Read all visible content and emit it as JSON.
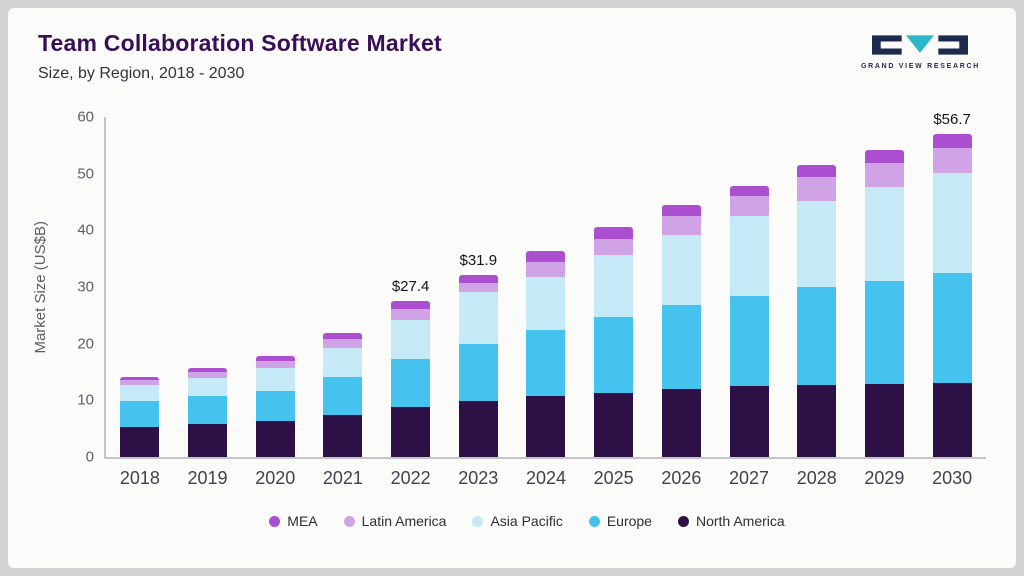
{
  "page": {
    "title": "Team Collaboration Software Market",
    "subtitle": "Size, by Region, 2018 - 2030"
  },
  "logo": {
    "text": "GRAND VIEW RESEARCH",
    "dark_color": "#1d2b4f",
    "teal_color": "#2bb7c5"
  },
  "chart_data": {
    "type": "bar",
    "stacked": true,
    "title": "Team Collaboration Software Market Size, by Region, 2018 - 2030",
    "ylabel": "Market Size (US$B)",
    "ylim": [
      0,
      60
    ],
    "yticks": [
      0,
      10,
      20,
      30,
      40,
      50,
      60
    ],
    "grid": false,
    "legend_position": "bottom",
    "categories": [
      "2018",
      "2019",
      "2020",
      "2021",
      "2022",
      "2023",
      "2024",
      "2025",
      "2026",
      "2027",
      "2028",
      "2029",
      "2030"
    ],
    "series": [
      {
        "name": "North America",
        "color": "#2d1045",
        "values": [
          5.3,
          5.8,
          6.3,
          7.4,
          8.8,
          9.8,
          10.7,
          11.3,
          12.0,
          12.4,
          12.6,
          12.8,
          12.9
        ]
      },
      {
        "name": "Europe",
        "color": "#45c2ed",
        "values": [
          4.5,
          4.9,
          5.3,
          6.6,
          8.4,
          10.0,
          11.6,
          13.3,
          14.6,
          15.8,
          17.2,
          18.1,
          19.4
        ]
      },
      {
        "name": "Asia Pacific",
        "color": "#c6e9f8",
        "values": [
          2.8,
          3.2,
          4.0,
          5.2,
          6.8,
          9.2,
          9.3,
          10.8,
          12.3,
          14.0,
          15.1,
          16.5,
          17.5
        ]
      },
      {
        "name": "Latin America",
        "color": "#cfa3e6",
        "values": [
          0.9,
          1.0,
          1.2,
          1.5,
          2.0,
          1.6,
          2.6,
          2.9,
          3.4,
          3.6,
          4.3,
          4.2,
          4.5
        ]
      },
      {
        "name": "MEA",
        "color": "#ab4fd0",
        "values": [
          0.6,
          0.7,
          0.9,
          1.0,
          1.4,
          1.3,
          2.0,
          2.0,
          1.9,
          1.8,
          2.0,
          2.2,
          2.4
        ]
      }
    ],
    "totals": [
      14.1,
      15.6,
      17.7,
      21.7,
      27.4,
      31.9,
      36.2,
      40.3,
      44.2,
      47.6,
      51.2,
      53.8,
      56.7
    ],
    "annotations": [
      {
        "category": "2022",
        "label": "$27.4"
      },
      {
        "category": "2023",
        "label": "$31.9"
      },
      {
        "category": "2030",
        "label": "$56.7"
      }
    ],
    "legend": [
      "MEA",
      "Latin America",
      "Asia Pacific",
      "Europe",
      "North America"
    ]
  }
}
